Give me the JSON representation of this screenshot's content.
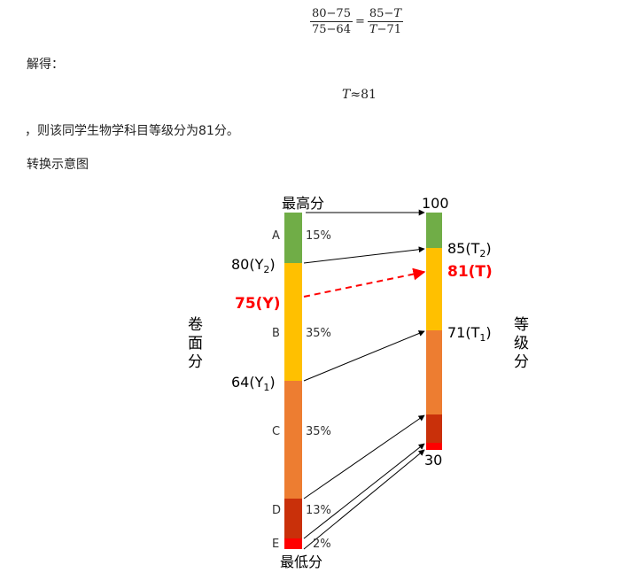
{
  "formula": {
    "left_num": "80−75",
    "left_den": "75−64",
    "equals": "=",
    "right_num": "85−",
    "right_num_var": "T",
    "right_den_var": "T",
    "right_den": "−71"
  },
  "solve_label": "解得：",
  "result": {
    "var": "T",
    "approx": "≈81"
  },
  "conclusion": "，则该同学生物学科目等级分为81分。",
  "diagram_title": "转换示意图",
  "diagram": {
    "left_axis_label": [
      "卷",
      "面",
      "分"
    ],
    "right_axis_label": [
      "等",
      "级",
      "分"
    ],
    "top_left_label": "最高分",
    "bottom_left_label": "最低分",
    "top_right_value": "100",
    "bottom_right_value": "30",
    "left_points": [
      {
        "main": "80(Y",
        "sub": "2",
        "end": ")"
      },
      {
        "main": "75(Y)",
        "highlight": true
      },
      {
        "main": "64(Y",
        "sub": "1",
        "end": ")"
      }
    ],
    "right_points": [
      {
        "main": "85(T",
        "sub": "2",
        "end": ")"
      },
      {
        "main": "81(T)",
        "highlight": true
      },
      {
        "main": "71(T",
        "sub": "1",
        "end": ")"
      }
    ],
    "grades": [
      {
        "letter": "A",
        "pct": "15%",
        "color": "#70AD47"
      },
      {
        "letter": "B",
        "pct": "35%",
        "color": "#FFC000"
      },
      {
        "letter": "C",
        "pct": "35%",
        "color": "#ED7D31"
      },
      {
        "letter": "D",
        "pct": "13%",
        "color": "#C9300A"
      },
      {
        "letter": "E",
        "pct": "2%",
        "color": "#FF0000"
      }
    ],
    "highlight_color": "#FF0000"
  }
}
